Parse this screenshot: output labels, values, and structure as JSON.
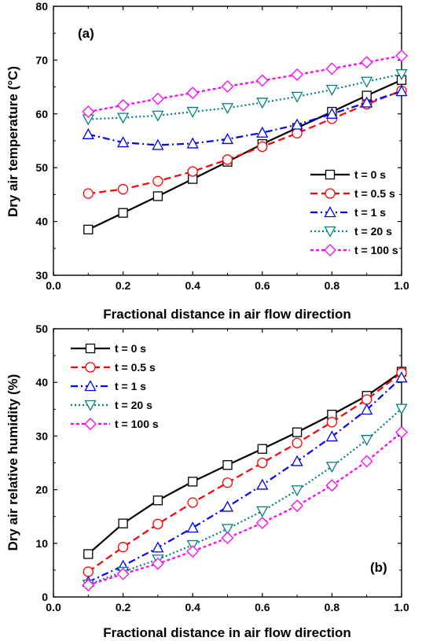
{
  "chart_data": [
    {
      "type": "line",
      "panel_label": "(a)",
      "title": "",
      "xlabel": "Fractional distance in air flow direction",
      "ylabel": "Dry air temperature (°C)",
      "xlim": [
        0.0,
        1.0
      ],
      "ylim": [
        30,
        80
      ],
      "xticks": [
        0.0,
        0.2,
        0.4,
        0.6,
        0.8,
        1.0
      ],
      "xtick_labels": [
        "0.0",
        "0.2",
        "0.4",
        "0.6",
        "0.8",
        "1.0"
      ],
      "yticks": [
        30,
        40,
        50,
        60,
        70,
        80
      ],
      "ytick_labels": [
        "30",
        "40",
        "50",
        "60",
        "70",
        "80"
      ],
      "grid": false,
      "legend_position": "lower-right",
      "x": [
        0.1,
        0.2,
        0.3,
        0.4,
        0.5,
        0.6,
        0.7,
        0.8,
        0.9,
        1.0
      ],
      "series": [
        {
          "name": "t = 0 s",
          "color": "#000000",
          "marker": "square",
          "dash": "solid",
          "values": [
            38.5,
            41.6,
            44.7,
            47.9,
            51.1,
            54.4,
            57.4,
            60.4,
            63.4,
            66.3
          ]
        },
        {
          "name": "t = 0.5 s",
          "color": "#ff0000",
          "marker": "circle",
          "dash": "dash",
          "values": [
            45.2,
            46.0,
            47.5,
            49.3,
            51.5,
            53.9,
            56.4,
            59.1,
            61.8,
            64.3
          ]
        },
        {
          "name": "t = 1 s",
          "color": "#0000ff",
          "marker": "triangle-up",
          "dash": "dashdot",
          "values": [
            56.2,
            54.7,
            54.2,
            54.5,
            55.3,
            56.5,
            58.0,
            60.0,
            62.1,
            64.2
          ]
        },
        {
          "name": "t = 20 s",
          "color": "#008080",
          "marker": "triangle-down",
          "dash": "dot",
          "values": [
            59.0,
            59.3,
            59.7,
            60.4,
            61.1,
            62.1,
            63.2,
            64.5,
            66.0,
            67.4
          ]
        },
        {
          "name": "t = 100 s",
          "color": "#ff00ff",
          "marker": "diamond",
          "dash": "shortdash",
          "values": [
            60.4,
            61.6,
            62.8,
            63.9,
            65.1,
            66.2,
            67.3,
            68.4,
            69.6,
            70.8
          ]
        }
      ]
    },
    {
      "type": "line",
      "panel_label": "(b)",
      "title": "",
      "xlabel": "Fractional distance in air flow direction",
      "ylabel": "Dry air relative humidity (%)",
      "xlim": [
        0.0,
        1.0
      ],
      "ylim": [
        0,
        50
      ],
      "xticks": [
        0.0,
        0.2,
        0.4,
        0.6,
        0.8,
        1.0
      ],
      "xtick_labels": [
        "0.0",
        "0.2",
        "0.4",
        "0.6",
        "0.8",
        "1.0"
      ],
      "yticks": [
        0,
        10,
        20,
        30,
        40,
        50
      ],
      "ytick_labels": [
        "0",
        "10",
        "20",
        "30",
        "40",
        "50"
      ],
      "grid": false,
      "legend_position": "upper-left",
      "x": [
        0.1,
        0.2,
        0.3,
        0.4,
        0.5,
        0.6,
        0.7,
        0.8,
        0.9,
        1.0
      ],
      "series": [
        {
          "name": "t = 0 s",
          "color": "#000000",
          "marker": "square",
          "dash": "solid",
          "values": [
            8.0,
            13.7,
            18.0,
            21.5,
            24.6,
            27.6,
            30.7,
            34.0,
            37.5,
            42.0
          ]
        },
        {
          "name": "t = 0.5 s",
          "color": "#ff0000",
          "marker": "circle",
          "dash": "dash",
          "values": [
            4.7,
            9.3,
            13.6,
            17.6,
            21.3,
            25.0,
            28.7,
            32.6,
            36.8,
            41.8
          ]
        },
        {
          "name": "t = 1 s",
          "color": "#0000ff",
          "marker": "triangle-up",
          "dash": "dashdot",
          "values": [
            2.8,
            5.8,
            9.2,
            12.9,
            16.8,
            20.9,
            25.3,
            29.9,
            34.9,
            40.9
          ]
        },
        {
          "name": "t = 20 s",
          "color": "#008080",
          "marker": "triangle-down",
          "dash": "dot",
          "values": [
            2.3,
            4.7,
            7.0,
            9.7,
            12.7,
            16.0,
            19.9,
            24.3,
            29.3,
            35.1
          ]
        },
        {
          "name": "t = 100 s",
          "color": "#ff00ff",
          "marker": "diamond",
          "dash": "shortdash",
          "values": [
            2.2,
            4.3,
            6.2,
            8.5,
            11.0,
            13.8,
            17.0,
            20.8,
            25.3,
            30.7
          ]
        }
      ]
    }
  ]
}
